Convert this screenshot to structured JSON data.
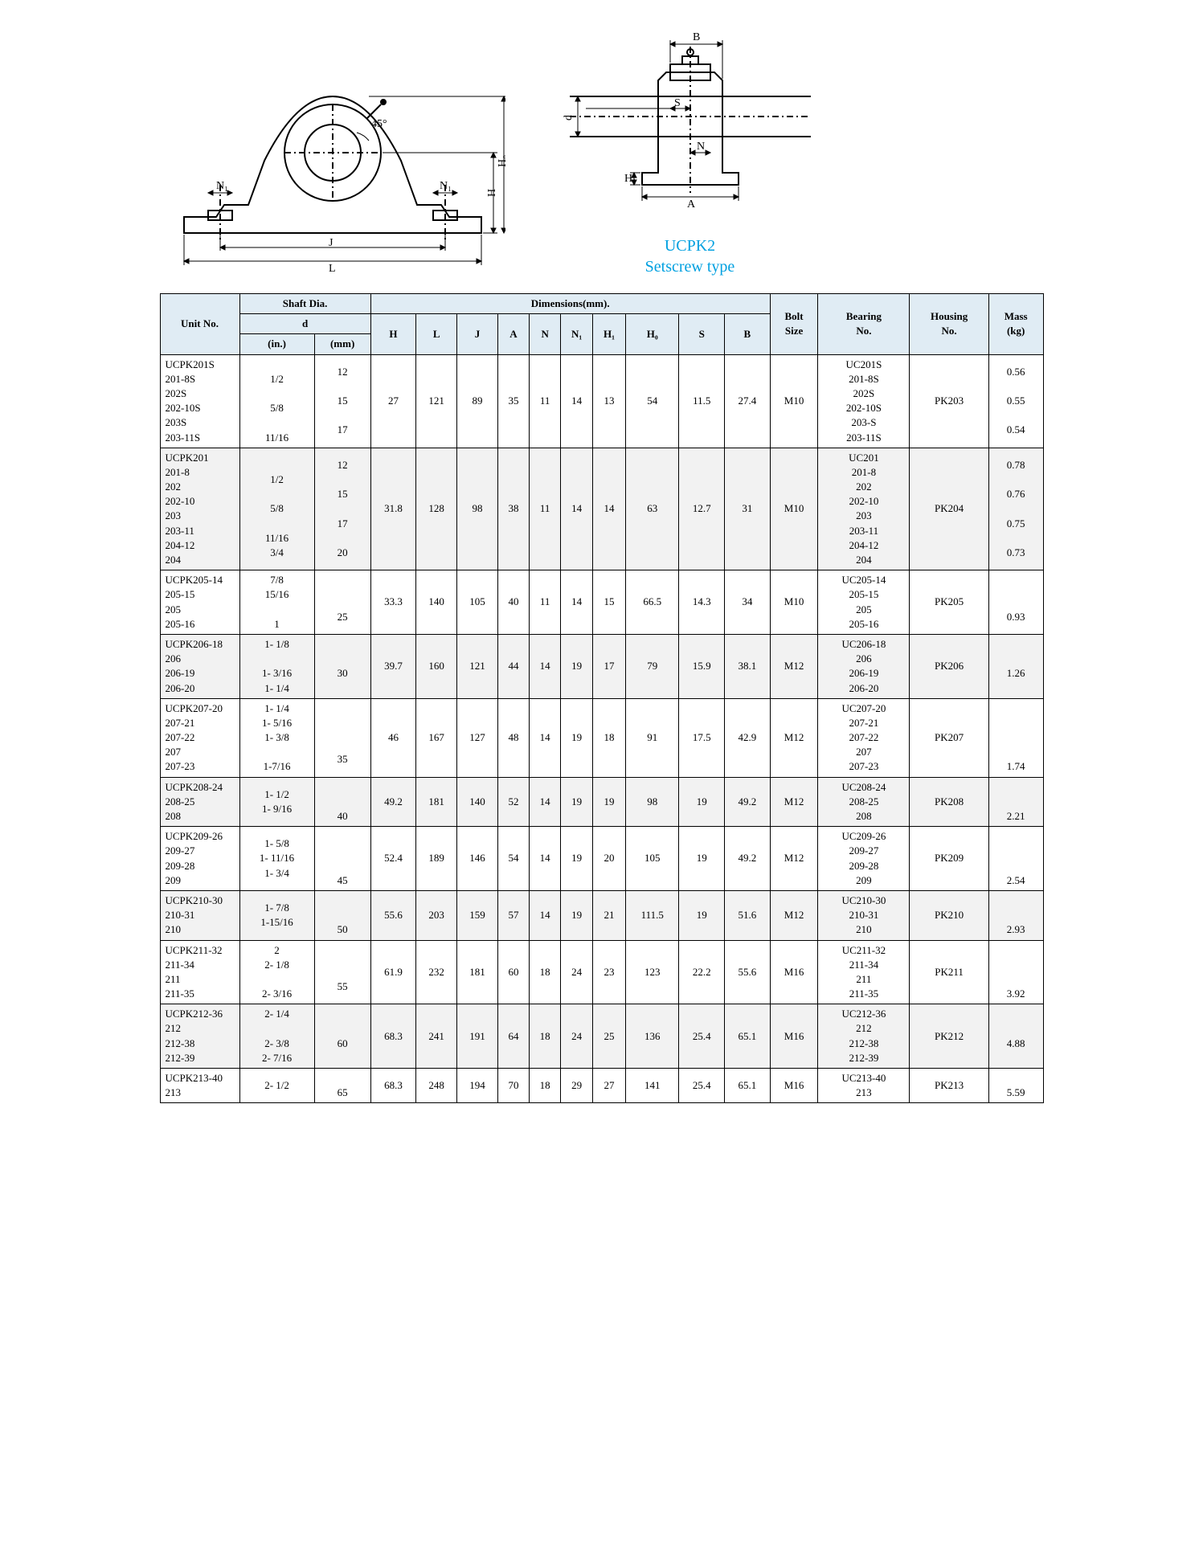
{
  "product": {
    "name": "UCPK2",
    "subtitle": "Setscrew type"
  },
  "diagram": {
    "front_labels": [
      "N₁",
      "N₁",
      "45°",
      "H₀",
      "H",
      "J",
      "L"
    ],
    "side_labels": [
      "B",
      "S",
      "d",
      "N",
      "H₁",
      "A"
    ]
  },
  "table": {
    "header_group_shaft": "Shaft Dia.",
    "header_group_dim": "Dimensions(mm).",
    "header_unit": "Unit No.",
    "header_d": "d",
    "header_in": "(in.)",
    "header_mm": "(mm)",
    "cols_dim": [
      "H",
      "L",
      "J",
      "A",
      "N",
      "N₁",
      "H₁",
      "H₀",
      "S",
      "B"
    ],
    "header_bolt": "Bolt\nSize",
    "header_bearing": "Bearing\nNo.",
    "header_housing": "Housing\nNo.",
    "header_mass": "Mass\n(kg)",
    "rows": [
      {
        "unit": "UCPK201S\n    201-8S\n    202S\n    202-10S\n    203S\n    203-11S",
        "in": "\n1/2\n\n5/8\n\n11/16",
        "mm": "12\n\n15\n\n17",
        "H": "27",
        "L": "121",
        "J": "89",
        "A": "35",
        "N": "11",
        "N1": "14",
        "H1": "13",
        "H0": "54",
        "S": "11.5",
        "B": "27.4",
        "bolt": "M10",
        "bearing": "UC201S\n201-8S\n202S\n202-10S\n203-S\n203-11S",
        "housing": "PK203",
        "mass": "0.56\n\n0.55\n\n0.54"
      },
      {
        "unit": "UCPK201\n    201-8\n    202\n    202-10\n    203\n    203-11\n    204-12\n    204",
        "in": "\n1/2\n\n5/8\n\n11/16\n3/4",
        "mm": "12\n\n15\n\n17\n\n20",
        "H": "31.8",
        "L": "128",
        "J": "98",
        "A": "38",
        "N": "11",
        "N1": "14",
        "H1": "14",
        "H0": "63",
        "S": "12.7",
        "B": "31",
        "bolt": "M10",
        "bearing": "UC201\n201-8\n202\n202-10\n203\n203-11\n204-12\n204",
        "housing": "PK204",
        "mass": "0.78\n\n0.76\n\n0.75\n\n0.73"
      },
      {
        "unit": "UCPK205-14\n    205-15\n    205\n    205-16",
        "in": "7/8\n15/16\n\n1",
        "mm": "\n\n25",
        "H": "33.3",
        "L": "140",
        "J": "105",
        "A": "40",
        "N": "11",
        "N1": "14",
        "H1": "15",
        "H0": "66.5",
        "S": "14.3",
        "B": "34",
        "bolt": "M10",
        "bearing": "UC205-14\n205-15\n205\n205-16",
        "housing": "PK205",
        "mass": "\n\n0.93"
      },
      {
        "unit": "UCPK206-18\n    206\n    206-19\n    206-20",
        "in": "1- 1/8\n\n1- 3/16\n1- 1/4",
        "mm": "\n30",
        "H": "39.7",
        "L": "160",
        "J": "121",
        "A": "44",
        "N": "14",
        "N1": "19",
        "H1": "17",
        "H0": "79",
        "S": "15.9",
        "B": "38.1",
        "bolt": "M12",
        "bearing": "UC206-18\n206\n206-19\n206-20",
        "housing": "PK206",
        "mass": "\n1.26"
      },
      {
        "unit": "UCPK207-20\n    207-21\n    207-22\n    207\n    207-23",
        "in": "1- 1/4\n1- 5/16\n1- 3/8\n\n1-7/16",
        "mm": "\n\n\n35",
        "H": "46",
        "L": "167",
        "J": "127",
        "A": "48",
        "N": "14",
        "N1": "19",
        "H1": "18",
        "H0": "91",
        "S": "17.5",
        "B": "42.9",
        "bolt": "M12",
        "bearing": "UC207-20\n207-21\n207-22\n207\n207-23",
        "housing": "PK207",
        "mass": "\n\n\n\n1.74"
      },
      {
        "unit": "UCPK208-24\n    208-25\n    208",
        "in": "1- 1/2\n1- 9/16",
        "mm": "\n\n40",
        "H": "49.2",
        "L": "181",
        "J": "140",
        "A": "52",
        "N": "14",
        "N1": "19",
        "H1": "19",
        "H0": "98",
        "S": "19",
        "B": "49.2",
        "bolt": "M12",
        "bearing": "UC208-24\n208-25\n208",
        "housing": "PK208",
        "mass": "\n\n2.21"
      },
      {
        "unit": "UCPK209-26\n    209-27\n    209-28\n    209",
        "in": "1- 5/8\n1- 11/16\n1- 3/4",
        "mm": "\n\n\n45",
        "H": "52.4",
        "L": "189",
        "J": "146",
        "A": "54",
        "N": "14",
        "N1": "19",
        "H1": "20",
        "H0": "105",
        "S": "19",
        "B": "49.2",
        "bolt": "M12",
        "bearing": "UC209-26\n209-27\n209-28\n209",
        "housing": "PK209",
        "mass": "\n\n\n2.54"
      },
      {
        "unit": "UCPK210-30\n    210-31\n    210",
        "in": "1- 7/8\n1-15/16",
        "mm": "\n\n50",
        "H": "55.6",
        "L": "203",
        "J": "159",
        "A": "57",
        "N": "14",
        "N1": "19",
        "H1": "21",
        "H0": "111.5",
        "S": "19",
        "B": "51.6",
        "bolt": "M12",
        "bearing": "UC210-30\n210-31\n210",
        "housing": "PK210",
        "mass": "\n\n2.93"
      },
      {
        "unit": "UCPK211-32\n    211-34\n    211\n    211-35",
        "in": "2\n2- 1/8\n\n2- 3/16",
        "mm": "\n\n55",
        "H": "61.9",
        "L": "232",
        "J": "181",
        "A": "60",
        "N": "18",
        "N1": "24",
        "H1": "23",
        "H0": "123",
        "S": "22.2",
        "B": "55.6",
        "bolt": "M16",
        "bearing": "UC211-32\n211-34\n211\n211-35",
        "housing": "PK211",
        "mass": "\n\n\n3.92"
      },
      {
        "unit": "UCPK212-36\n    212\n    212-38\n    212-39",
        "in": "2- 1/4\n\n2- 3/8\n2- 7/16",
        "mm": "\n60",
        "H": "68.3",
        "L": "241",
        "J": "191",
        "A": "64",
        "N": "18",
        "N1": "24",
        "H1": "25",
        "H0": "136",
        "S": "25.4",
        "B": "65.1",
        "bolt": "M16",
        "bearing": "UC212-36\n212\n212-38\n212-39",
        "housing": "PK212",
        "mass": "\n4.88"
      },
      {
        "unit": "UCPK213-40\n    213",
        "in": "2- 1/2",
        "mm": "\n65",
        "H": "68.3",
        "L": "248",
        "J": "194",
        "A": "70",
        "N": "18",
        "N1": "29",
        "H1": "27",
        "H0": "141",
        "S": "25.4",
        "B": "65.1",
        "bolt": "M16",
        "bearing": "UC213-40\n213",
        "housing": "PK213",
        "mass": "\n5.59"
      }
    ]
  }
}
